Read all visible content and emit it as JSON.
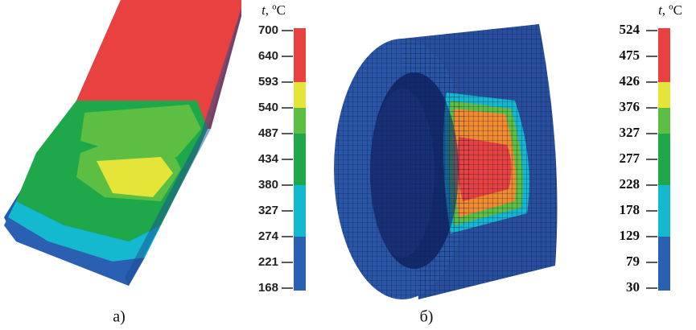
{
  "panels": [
    {
      "caption": "а)",
      "legend_symbol": "t",
      "legend_unit": ", ºC",
      "ticks": [
        "700",
        "640",
        "593",
        "540",
        "487",
        "434",
        "380",
        "327",
        "274",
        "221",
        "168"
      ],
      "band_colors": [
        "#e8413f",
        "#e5e438",
        "#5cbf43",
        "#1ea84a",
        "#14b8cf",
        "#2b5fb1"
      ]
    },
    {
      "caption": "б)",
      "legend_symbol": "t",
      "legend_unit": ", ºC",
      "ticks": [
        "524",
        "475",
        "426",
        "376",
        "327",
        "277",
        "228",
        "178",
        "129",
        "79",
        "30"
      ],
      "band_colors": [
        "#e8413f",
        "#e5e438",
        "#5cbf43",
        "#1ea84a",
        "#14b8cf",
        "#2b5fb1"
      ]
    }
  ]
}
